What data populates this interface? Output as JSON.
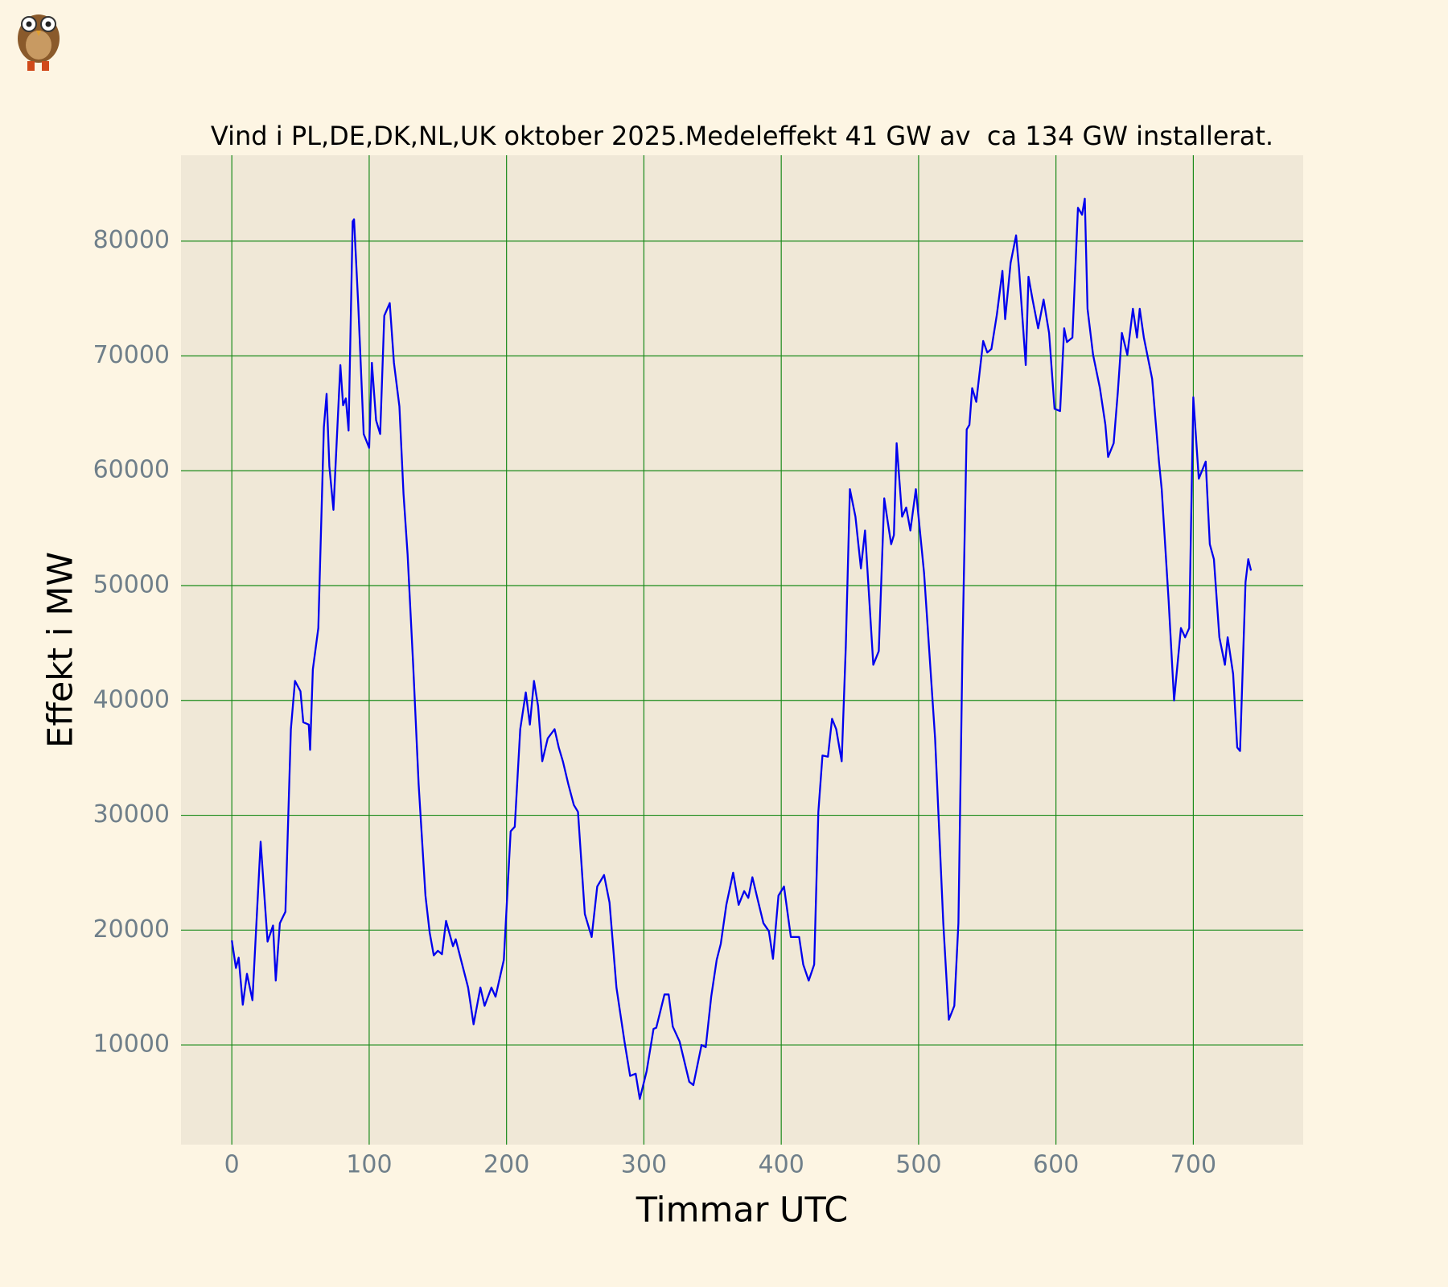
{
  "chart_data": {
    "type": "line",
    "title": "Vind i PL,DE,DK,NL,UK oktober 2025.Medeleffekt 41 GW av  ca 134 GW installerat.",
    "x_label": "Timmar UTC",
    "y_label": "Effekt i MW",
    "xlim": [
      -37,
      780
    ],
    "ylim": [
      1319,
      87475
    ],
    "xticks": [
      0,
      100,
      200,
      300,
      400,
      500,
      600,
      700
    ],
    "yticks": [
      10000,
      20000,
      30000,
      40000,
      50000,
      60000,
      70000,
      80000
    ],
    "grid": true,
    "grid_color": "#1a8a1a",
    "series": [
      {
        "name": "Vind",
        "color": "#0000ee",
        "x": [
          0,
          3,
          5,
          8,
          11,
          15,
          21,
          26,
          30,
          32,
          35,
          39,
          43,
          46,
          50,
          52,
          56,
          57,
          59,
          63,
          67,
          69,
          71,
          74,
          79,
          81,
          83,
          85,
          88,
          89,
          92,
          96,
          100,
          102,
          105,
          108,
          111,
          115,
          118,
          122,
          125,
          128,
          132,
          136,
          141,
          144,
          147,
          150,
          153,
          156,
          161,
          163,
          172,
          176,
          181,
          184,
          189,
          192,
          198,
          203,
          206,
          210,
          214,
          217,
          220,
          223,
          226,
          230,
          235,
          238,
          241,
          245,
          249,
          252,
          257,
          262,
          266,
          271,
          275,
          280,
          286,
          290,
          294,
          297,
          302,
          307,
          309,
          315,
          318,
          321,
          326,
          333,
          336,
          342,
          345,
          349,
          353,
          356,
          360,
          365,
          369,
          373,
          376,
          379,
          383,
          387,
          391,
          394,
          398,
          402,
          407,
          413,
          416,
          420,
          424,
          427,
          430,
          434,
          437,
          440,
          444,
          447,
          450,
          454,
          458,
          461,
          467,
          471,
          475,
          477,
          480,
          482,
          484,
          488,
          491,
          494,
          498,
          504,
          512,
          518,
          522,
          526,
          529,
          532,
          535,
          537,
          539,
          542,
          547,
          550,
          553,
          557,
          561,
          563,
          567,
          571,
          573,
          578,
          580,
          583,
          587,
          591,
          595,
          599,
          603,
          606,
          608,
          612,
          616,
          619,
          621,
          623,
          627,
          632,
          636,
          638,
          642,
          645,
          648,
          652,
          656,
          659,
          661,
          664,
          668,
          670,
          675,
          677,
          682,
          686,
          691,
          694,
          697,
          700,
          704,
          709,
          712,
          715,
          719,
          723,
          725,
          729,
          732,
          734,
          738,
          740,
          742
        ],
        "values": [
          19100,
          16700,
          17600,
          13500,
          16200,
          13900,
          27700,
          19000,
          20400,
          15600,
          20600,
          21600,
          37500,
          41700,
          40800,
          38100,
          37900,
          35700,
          42700,
          46300,
          63800,
          66700,
          60400,
          56600,
          69200,
          65700,
          66300,
          63500,
          81700,
          81900,
          74500,
          63200,
          62000,
          69400,
          64400,
          63200,
          73500,
          74600,
          69400,
          65600,
          58000,
          52700,
          43100,
          32700,
          23000,
          19800,
          17800,
          18200,
          17900,
          20800,
          18600,
          19200,
          15000,
          11800,
          15000,
          13400,
          15000,
          14200,
          17400,
          28600,
          29000,
          37500,
          40700,
          37900,
          41700,
          39500,
          34700,
          36700,
          37500,
          35900,
          34700,
          32700,
          30900,
          30300,
          21400,
          19400,
          23800,
          24800,
          22400,
          15000,
          10200,
          7300,
          7500,
          5300,
          7700,
          11400,
          11500,
          14400,
          14400,
          11600,
          10300,
          6800,
          6500,
          10000,
          9800,
          14200,
          17400,
          18800,
          22200,
          25000,
          22200,
          23400,
          22800,
          24600,
          22600,
          20600,
          19900,
          17500,
          23000,
          23800,
          19400,
          19400,
          17000,
          15600,
          17000,
          30300,
          35200,
          35100,
          38400,
          37500,
          34700,
          44700,
          58400,
          56000,
          51500,
          54800,
          43100,
          44300,
          57600,
          56000,
          53600,
          54400,
          62400,
          56000,
          56800,
          54800,
          58400,
          51100,
          36700,
          20600,
          12200,
          13400,
          20600,
          44700,
          63600,
          64000,
          67200,
          66000,
          71300,
          70300,
          70600,
          73600,
          77400,
          73200,
          78100,
          80500,
          77700,
          69200,
          76900,
          74900,
          72400,
          74900,
          72000,
          65400,
          65200,
          72400,
          71200,
          71600,
          82900,
          82300,
          83700,
          74100,
          70100,
          67200,
          64000,
          61200,
          62400,
          66800,
          72000,
          70100,
          74100,
          71600,
          74100,
          71600,
          69200,
          68000,
          60800,
          58400,
          48700,
          40000,
          46300,
          45500,
          46300,
          66400,
          59300,
          60800,
          53600,
          52300,
          45500,
          43100,
          45500,
          42300,
          35900,
          35600,
          50300,
          52300,
          51300
        ]
      }
    ]
  }
}
